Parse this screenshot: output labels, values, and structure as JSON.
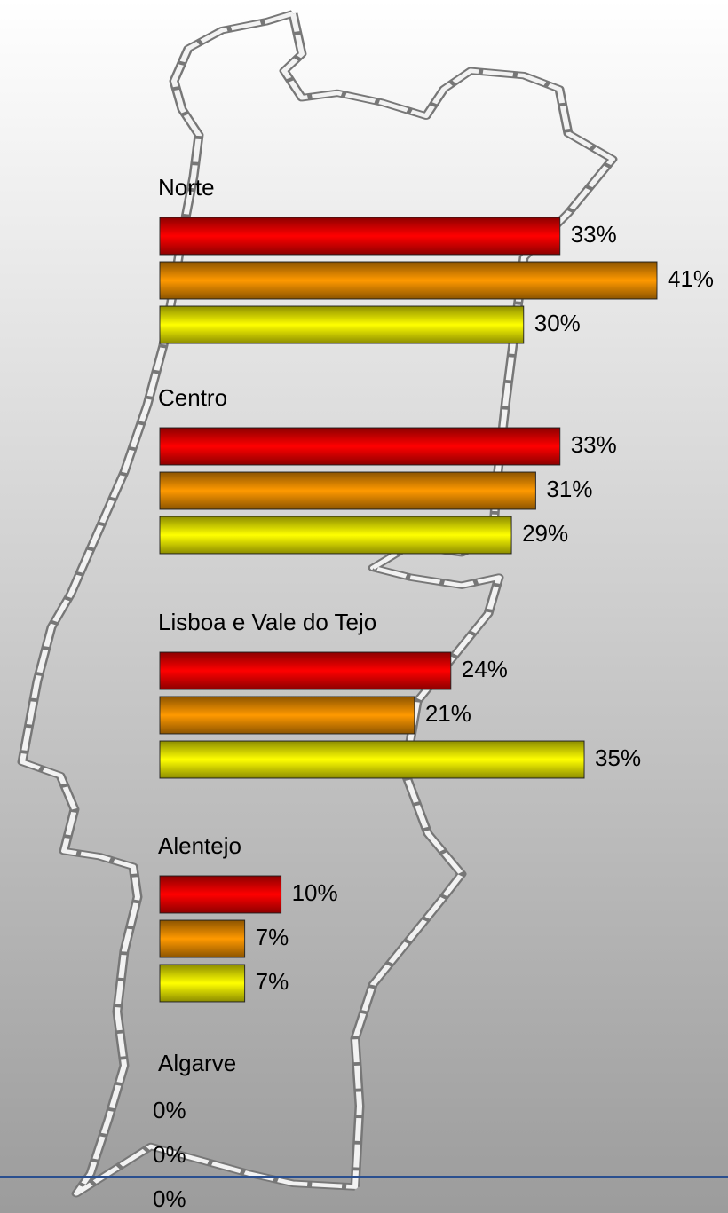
{
  "chart_data": {
    "type": "bar",
    "orientation": "horizontal",
    "categories": [
      "Norte",
      "Centro",
      "Lisboa e Vale do Tejo",
      "Alentejo",
      "Algarve"
    ],
    "series": [
      {
        "color": "#ff0000",
        "values": [
          33,
          33,
          24,
          10,
          0
        ],
        "value_labels": [
          "33%",
          "33%",
          "24%",
          "10%",
          "0%"
        ]
      },
      {
        "color": "#ff9900",
        "values": [
          41,
          31,
          21,
          7,
          0
        ],
        "value_labels": [
          "41%",
          "31%",
          "21%",
          "7%",
          "0%"
        ]
      },
      {
        "color": "#ffff00",
        "values": [
          30,
          29,
          35,
          7,
          0
        ],
        "value_labels": [
          "30%",
          "29%",
          "35%",
          "7%",
          "0%"
        ]
      }
    ]
  }
}
